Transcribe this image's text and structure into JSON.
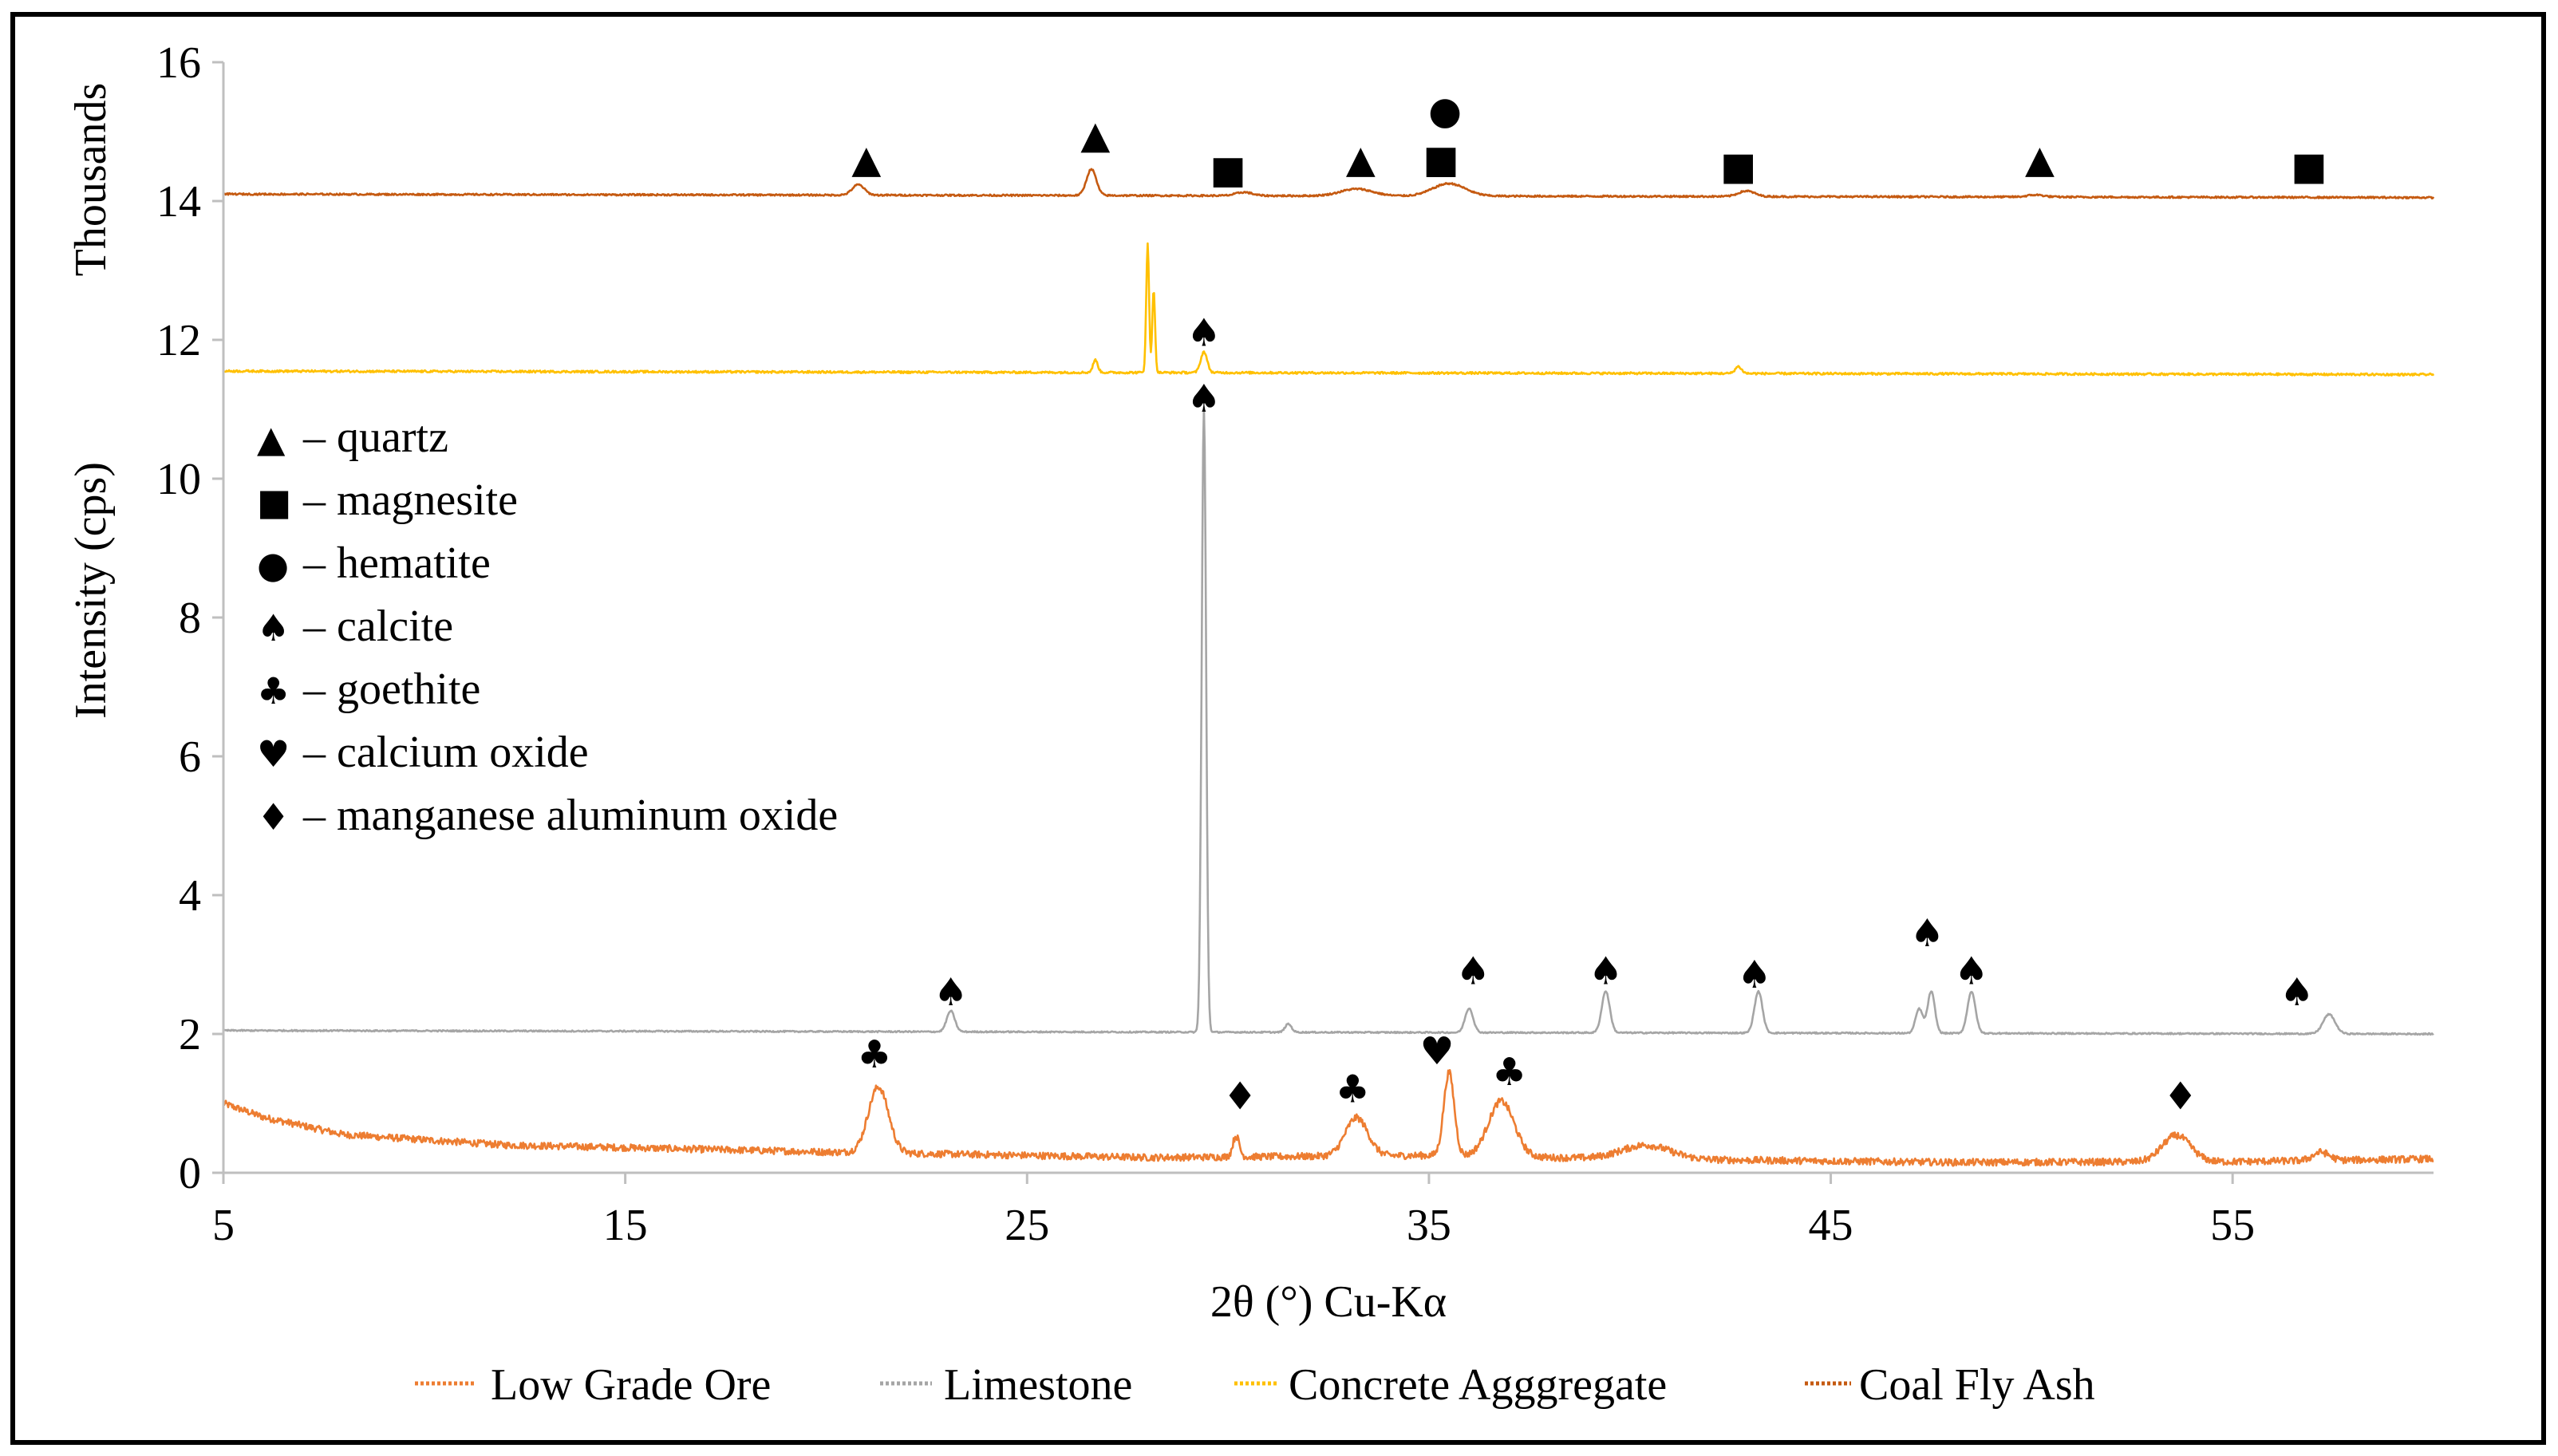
{
  "chart_data": {
    "type": "line",
    "title": "",
    "xlabel": "2θ (°) Cu-Kα",
    "ylabel": "Intensity (cps)",
    "yunit_label": "Thousands",
    "xlim": [
      5,
      60
    ],
    "ylim": [
      0,
      16
    ],
    "xticks": [
      5,
      15,
      25,
      35,
      45,
      55
    ],
    "yticks": [
      0,
      2,
      4,
      6,
      8,
      10,
      12,
      14,
      16
    ],
    "grid": false,
    "mineral_legend": [
      {
        "symbol": "triangle",
        "glyph": "▲",
        "label": "– quartz"
      },
      {
        "symbol": "square",
        "glyph": "■",
        "label": "– magnesite"
      },
      {
        "symbol": "circle",
        "glyph": "●",
        "label": "– hematite"
      },
      {
        "symbol": "spade",
        "glyph": "♠",
        "label": "– calcite"
      },
      {
        "symbol": "club",
        "glyph": "♣",
        "label": "– goethite"
      },
      {
        "symbol": "heart",
        "glyph": "♥",
        "label": "– calcium oxide"
      },
      {
        "symbol": "diamond",
        "glyph": "♦",
        "label": "– manganese aluminum oxide"
      }
    ],
    "glyphs": {
      "triangle": "▲",
      "square": "■",
      "circle": "●",
      "spade": "♠",
      "club": "♣",
      "heart": "♥",
      "diamond": "♦"
    },
    "series": [
      {
        "name": "Low Grade Ore",
        "color": "#ED7D31",
        "noise": 0.05,
        "baseline": [
          [
            5,
            1.0
          ],
          [
            6,
            0.8
          ],
          [
            8,
            0.55
          ],
          [
            12,
            0.4
          ],
          [
            20,
            0.3
          ],
          [
            28,
            0.22
          ],
          [
            35,
            0.25
          ],
          [
            40,
            0.2
          ],
          [
            48,
            0.15
          ],
          [
            55,
            0.16
          ],
          [
            60,
            0.2
          ]
        ],
        "peaks": [
          [
            21.3,
            0.95,
            0.25
          ],
          [
            30.2,
            0.3,
            0.08
          ],
          [
            33.2,
            0.55,
            0.28
          ],
          [
            35.5,
            1.2,
            0.13
          ],
          [
            36.8,
            0.8,
            0.32
          ],
          [
            40.4,
            0.2,
            0.6
          ],
          [
            53.6,
            0.38,
            0.35
          ],
          [
            57.2,
            0.12,
            0.2
          ]
        ]
      },
      {
        "name": "Limestone",
        "color": "#A5A5A5",
        "noise": 0.01,
        "baseline": [
          [
            5,
            2.05
          ],
          [
            25,
            2.03
          ],
          [
            60,
            2.0
          ]
        ],
        "peaks": [
          [
            23.1,
            0.3,
            0.1
          ],
          [
            29.4,
            9.0,
            0.055
          ],
          [
            31.5,
            0.12,
            0.08
          ],
          [
            36.0,
            0.35,
            0.1
          ],
          [
            39.4,
            0.6,
            0.1
          ],
          [
            43.2,
            0.6,
            0.1
          ],
          [
            47.2,
            0.35,
            0.09
          ],
          [
            47.5,
            0.6,
            0.09
          ],
          [
            48.5,
            0.6,
            0.1
          ],
          [
            57.4,
            0.28,
            0.15
          ]
        ]
      },
      {
        "name": "Concrete Agggregate",
        "color": "#FFC000",
        "noise": 0.015,
        "baseline": [
          [
            5,
            11.55
          ],
          [
            60,
            11.5
          ]
        ],
        "peaks": [
          [
            26.7,
            0.18,
            0.06
          ],
          [
            28.0,
            1.85,
            0.035
          ],
          [
            28.15,
            1.2,
            0.035
          ],
          [
            29.4,
            0.3,
            0.08
          ],
          [
            42.7,
            0.1,
            0.08
          ]
        ]
      },
      {
        "name": "Coal Fly Ash",
        "color": "#C55A11",
        "noise": 0.012,
        "baseline": [
          [
            5,
            14.1
          ],
          [
            60,
            14.05
          ]
        ],
        "peaks": [
          [
            20.8,
            0.15,
            0.15
          ],
          [
            26.6,
            0.38,
            0.12
          ],
          [
            30.4,
            0.05,
            0.2
          ],
          [
            33.2,
            0.1,
            0.4
          ],
          [
            35.5,
            0.18,
            0.4
          ],
          [
            42.9,
            0.08,
            0.2
          ],
          [
            50.1,
            0.03,
            0.2
          ]
        ]
      }
    ],
    "peak_markers": [
      {
        "symbol": "triangle",
        "x": 21.0,
        "y": 14.6
      },
      {
        "symbol": "triangle",
        "x": 26.7,
        "y": 14.95
      },
      {
        "symbol": "square",
        "x": 30.0,
        "y": 14.45
      },
      {
        "symbol": "triangle",
        "x": 33.3,
        "y": 14.6
      },
      {
        "symbol": "circle",
        "x": 35.4,
        "y": 15.3
      },
      {
        "symbol": "square",
        "x": 35.3,
        "y": 14.6
      },
      {
        "symbol": "square",
        "x": 42.7,
        "y": 14.5
      },
      {
        "symbol": "triangle",
        "x": 50.2,
        "y": 14.6
      },
      {
        "symbol": "square",
        "x": 56.9,
        "y": 14.5
      },
      {
        "symbol": "spade",
        "x": 29.4,
        "y": 12.1
      },
      {
        "symbol": "spade",
        "x": 29.4,
        "y": 11.15
      },
      {
        "symbol": "spade",
        "x": 23.1,
        "y": 2.6
      },
      {
        "symbol": "spade",
        "x": 36.1,
        "y": 2.9
      },
      {
        "symbol": "spade",
        "x": 39.4,
        "y": 2.9
      },
      {
        "symbol": "spade",
        "x": 43.1,
        "y": 2.85
      },
      {
        "symbol": "spade",
        "x": 47.4,
        "y": 3.45
      },
      {
        "symbol": "spade",
        "x": 48.5,
        "y": 2.9
      },
      {
        "symbol": "spade",
        "x": 56.6,
        "y": 2.6
      },
      {
        "symbol": "club",
        "x": 21.2,
        "y": 1.7
      },
      {
        "symbol": "club",
        "x": 33.1,
        "y": 1.2
      },
      {
        "symbol": "club",
        "x": 37.0,
        "y": 1.45
      },
      {
        "symbol": "heart",
        "x": 35.2,
        "y": 1.75
      },
      {
        "symbol": "diamond",
        "x": 30.3,
        "y": 1.1
      },
      {
        "symbol": "diamond",
        "x": 53.7,
        "y": 1.1
      }
    ],
    "bottom_legend": [
      "Low Grade Ore",
      "Limestone",
      "Concrete Agggregate",
      "Coal Fly Ash"
    ]
  }
}
